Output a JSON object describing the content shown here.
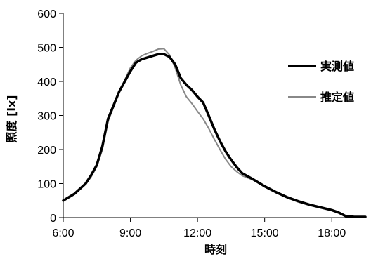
{
  "chart_data": {
    "type": "line",
    "xlabel": "時刻",
    "ylabel": "照度 [lx]",
    "xlim": [
      6,
      19.5
    ],
    "ylim": [
      0,
      600
    ],
    "x_ticks": [
      {
        "value": 6,
        "label": "6:00"
      },
      {
        "value": 9,
        "label": "9:00"
      },
      {
        "value": 12,
        "label": "12:00"
      },
      {
        "value": 15,
        "label": "15:00"
      },
      {
        "value": 18,
        "label": "18:00"
      }
    ],
    "y_ticks": [
      {
        "value": 0,
        "label": "0"
      },
      {
        "value": 100,
        "label": "100"
      },
      {
        "value": 200,
        "label": "200"
      },
      {
        "value": 300,
        "label": "300"
      },
      {
        "value": 400,
        "label": "400"
      },
      {
        "value": 500,
        "label": "500"
      },
      {
        "value": 600,
        "label": "600"
      }
    ],
    "legend_position": "right",
    "grid": false,
    "series": [
      {
        "name": "実測値",
        "color": "#000000",
        "style": "thick",
        "points": [
          [
            6.0,
            50
          ],
          [
            6.5,
            70
          ],
          [
            7.0,
            100
          ],
          [
            7.25,
            125
          ],
          [
            7.5,
            155
          ],
          [
            7.75,
            210
          ],
          [
            8.0,
            290
          ],
          [
            8.25,
            330
          ],
          [
            8.5,
            370
          ],
          [
            8.75,
            400
          ],
          [
            9.0,
            430
          ],
          [
            9.25,
            455
          ],
          [
            9.5,
            465
          ],
          [
            9.75,
            470
          ],
          [
            10.0,
            475
          ],
          [
            10.25,
            480
          ],
          [
            10.5,
            480
          ],
          [
            10.75,
            472
          ],
          [
            11.0,
            450
          ],
          [
            11.25,
            410
          ],
          [
            11.5,
            390
          ],
          [
            11.75,
            375
          ],
          [
            12.0,
            355
          ],
          [
            12.25,
            338
          ],
          [
            12.5,
            300
          ],
          [
            12.75,
            260
          ],
          [
            13.0,
            225
          ],
          [
            13.25,
            195
          ],
          [
            13.5,
            170
          ],
          [
            13.75,
            148
          ],
          [
            14.0,
            130
          ],
          [
            14.5,
            112
          ],
          [
            15.0,
            92
          ],
          [
            15.5,
            75
          ],
          [
            16.0,
            60
          ],
          [
            16.5,
            48
          ],
          [
            17.0,
            38
          ],
          [
            17.5,
            30
          ],
          [
            18.0,
            22
          ],
          [
            18.3,
            15
          ],
          [
            18.6,
            5
          ],
          [
            19.0,
            2
          ],
          [
            19.5,
            2
          ]
        ]
      },
      {
        "name": "推定値",
        "color": "#888888",
        "style": "thin",
        "points": [
          [
            6.0,
            48
          ],
          [
            6.5,
            68
          ],
          [
            7.0,
            98
          ],
          [
            7.25,
            120
          ],
          [
            7.5,
            150
          ],
          [
            7.75,
            200
          ],
          [
            8.0,
            282
          ],
          [
            8.25,
            325
          ],
          [
            8.5,
            368
          ],
          [
            8.75,
            405
          ],
          [
            9.0,
            440
          ],
          [
            9.25,
            462
          ],
          [
            9.5,
            475
          ],
          [
            9.75,
            482
          ],
          [
            10.0,
            488
          ],
          [
            10.25,
            495
          ],
          [
            10.5,
            496
          ],
          [
            10.75,
            478
          ],
          [
            11.0,
            440
          ],
          [
            11.25,
            390
          ],
          [
            11.5,
            355
          ],
          [
            11.75,
            335
          ],
          [
            12.0,
            312
          ],
          [
            12.25,
            290
          ],
          [
            12.5,
            262
          ],
          [
            12.75,
            230
          ],
          [
            13.0,
            200
          ],
          [
            13.25,
            172
          ],
          [
            13.5,
            150
          ],
          [
            13.75,
            135
          ],
          [
            14.0,
            123
          ],
          [
            14.5,
            110
          ],
          [
            15.0,
            90
          ],
          [
            15.5,
            73
          ],
          [
            16.0,
            58
          ],
          [
            16.5,
            46
          ],
          [
            17.0,
            36
          ],
          [
            17.5,
            28
          ],
          [
            18.0,
            20
          ],
          [
            18.3,
            13
          ],
          [
            18.6,
            4
          ],
          [
            19.0,
            2
          ],
          [
            19.5,
            2
          ]
        ]
      }
    ]
  }
}
